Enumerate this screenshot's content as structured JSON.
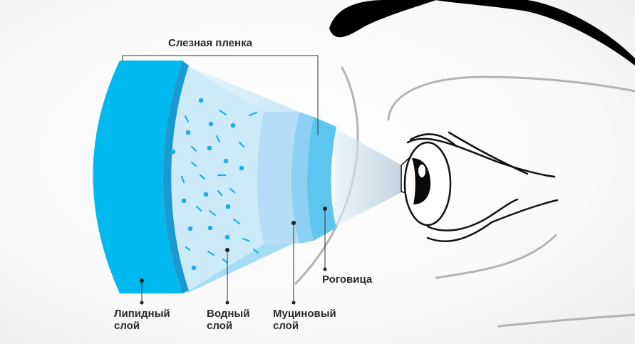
{
  "diagram": {
    "title": "Слезная пленка",
    "labels": {
      "cornea": "Роговица",
      "lipid_line1": "Липидный",
      "lipid_line2": "слой",
      "water_line1": "Водный",
      "water_line2": "слой",
      "mucin_line1": "Муциновый",
      "mucin_line2": "слой"
    }
  },
  "colors": {
    "lipid": "#00b9ef",
    "lipid_edge": "#1a9ad0",
    "aqueous": "#cdeaf9",
    "mucin_light": "#b3def6",
    "mucin_mid": "#8dd0f3",
    "cornea": "#5cc6ee",
    "particle": "#1fb0e6",
    "eye_line": "#111111",
    "face_line": "#b3b3b3",
    "text": "#2b2b2b"
  }
}
